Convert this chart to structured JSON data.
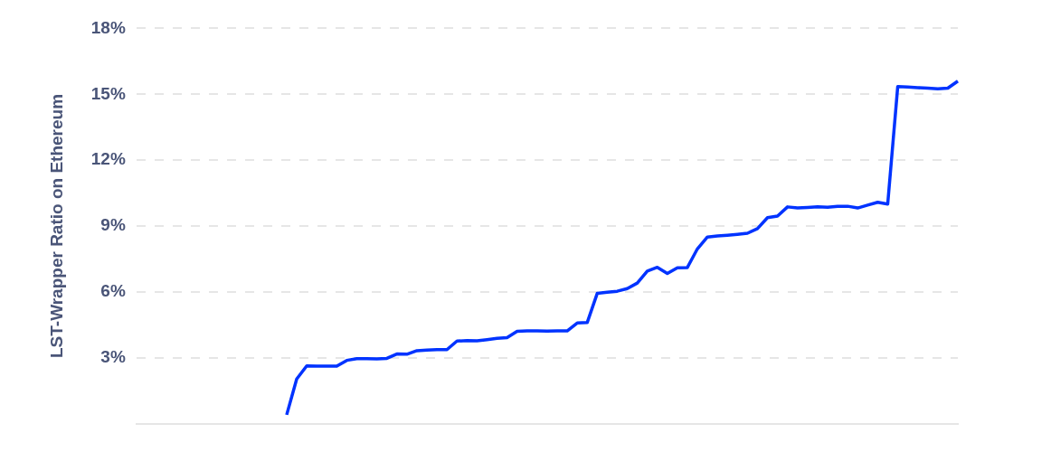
{
  "chart_data": {
    "type": "line",
    "ylabel": "LST-Wrapper Ratio on Ethereum",
    "categories": [
      null,
      null,
      null,
      null,
      null,
      null,
      null,
      null,
      null,
      null,
      null,
      null,
      null,
      null,
      null,
      null,
      null,
      null,
      null,
      null,
      null,
      null,
      null,
      null,
      null,
      null,
      null,
      null,
      null,
      null,
      null,
      null,
      null,
      null,
      null,
      null,
      null,
      null,
      null,
      null,
      null,
      null,
      null,
      null,
      null,
      null,
      null,
      null,
      null,
      null,
      null,
      null,
      null,
      null,
      null,
      null,
      null,
      null,
      null,
      null,
      null,
      null,
      null,
      null,
      null,
      null,
      null,
      null,
      null,
      null,
      null,
      null,
      null,
      null,
      null,
      null,
      null,
      null,
      null,
      null,
      null,
      null,
      null
    ],
    "series": [
      {
        "color": "#0033ff",
        "values": [
          null,
          null,
          null,
          null,
          null,
          null,
          null,
          null,
          null,
          null,
          null,
          null,
          null,
          null,
          null,
          0.4,
          2.03,
          2.63,
          2.62,
          2.62,
          2.62,
          2.88,
          2.96,
          2.96,
          2.95,
          2.97,
          3.17,
          3.16,
          3.32,
          3.35,
          3.37,
          3.37,
          3.76,
          3.78,
          3.77,
          3.82,
          3.88,
          3.92,
          4.2,
          4.22,
          4.22,
          4.21,
          4.22,
          4.22,
          4.58,
          4.6,
          5.93,
          5.98,
          6.03,
          6.15,
          6.4,
          6.95,
          7.12,
          6.84,
          7.1,
          7.11,
          7.96,
          8.5,
          8.55,
          8.58,
          8.62,
          8.67,
          8.88,
          9.38,
          9.45,
          9.87,
          9.82,
          9.84,
          9.87,
          9.85,
          9.9,
          9.9,
          9.82,
          9.95,
          10.08,
          10.0,
          15.35,
          15.33,
          15.3,
          15.28,
          15.25,
          15.28,
          15.6
        ]
      }
    ],
    "ylim": [
      0,
      18
    ],
    "yticks": [
      {
        "value": 3,
        "label": "3%"
      },
      {
        "value": 6,
        "label": "6%"
      },
      {
        "value": 9,
        "label": "9%"
      },
      {
        "value": 12,
        "label": "12%"
      },
      {
        "value": 15,
        "label": "15%"
      },
      {
        "value": 18,
        "label": "18%"
      }
    ],
    "grid": "y",
    "legend": false,
    "tick_labels": "y",
    "marker": "none",
    "line_style": "solid"
  }
}
